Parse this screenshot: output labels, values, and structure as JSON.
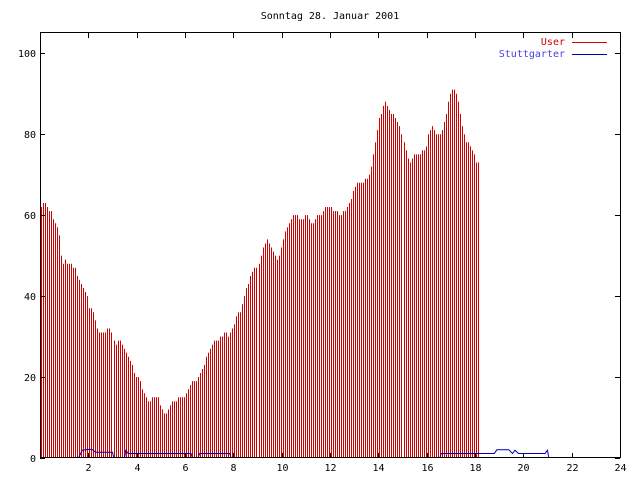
{
  "chart_data": {
    "type": "bar",
    "title": "Sonntag 28. Januar 2001",
    "xlabel": "",
    "ylabel": "",
    "xlim": [
      0,
      24
    ],
    "ylim": [
      0,
      105
    ],
    "x_ticks": [
      2,
      4,
      6,
      8,
      10,
      12,
      14,
      16,
      18,
      20,
      22,
      24
    ],
    "y_ticks": [
      0,
      20,
      40,
      60,
      80,
      100
    ],
    "grid": false,
    "legend_position": "top-right",
    "samples_per_hour": 12,
    "series": [
      {
        "name": "User",
        "type": "bar",
        "color": "#d00000",
        "values": [
          62,
          63,
          63,
          62,
          61,
          61,
          59,
          58,
          57,
          55,
          50,
          48,
          49,
          48,
          48,
          48,
          47,
          47,
          45,
          44,
          43,
          42,
          41,
          40,
          37,
          37,
          36,
          34,
          32,
          31,
          31,
          31,
          31,
          32,
          32,
          31,
          29,
          28,
          29,
          29,
          28,
          27,
          26,
          25,
          24,
          23,
          21,
          20,
          20,
          19,
          17,
          16,
          15,
          14,
          14,
          15,
          15,
          15,
          15,
          13,
          12,
          11,
          11,
          12,
          13,
          14,
          14,
          14,
          15,
          15,
          15,
          15,
          16,
          17,
          18,
          19,
          19,
          19,
          20,
          21,
          22,
          23,
          25,
          26,
          27,
          28,
          29,
          29,
          29,
          30,
          30,
          31,
          31,
          30,
          31,
          32,
          33,
          35,
          36,
          36,
          38,
          40,
          42,
          43,
          45,
          46,
          47,
          47,
          48,
          50,
          52,
          53,
          54,
          53,
          52,
          51,
          50,
          49,
          50,
          52,
          54,
          56,
          57,
          58,
          59,
          60,
          60,
          60,
          59,
          59,
          59,
          60,
          60,
          59,
          58,
          58,
          59,
          60,
          60,
          60,
          61,
          62,
          62,
          62,
          62,
          61,
          61,
          61,
          60,
          60,
          61,
          61,
          62,
          63,
          64,
          66,
          67,
          68,
          68,
          68,
          68,
          69,
          69,
          70,
          72,
          75,
          78,
          81,
          84,
          85,
          87,
          88,
          87,
          86,
          85,
          85,
          84,
          83,
          82,
          80,
          78,
          76,
          74,
          73,
          74,
          75,
          75,
          75,
          75,
          76,
          76,
          77,
          80,
          81,
          82,
          81,
          80,
          80,
          80,
          81,
          83,
          85,
          88,
          90,
          91,
          91,
          90,
          88,
          85,
          82,
          80,
          78,
          78,
          77,
          76,
          75,
          73,
          73
        ]
      },
      {
        "name": "Stuttgarter",
        "type": "line",
        "color": "#0000b0",
        "values": [
          0,
          0,
          0,
          0,
          0,
          0,
          0,
          0,
          0,
          0,
          0,
          0,
          0,
          0,
          0,
          0,
          0,
          0,
          0,
          0,
          0,
          0,
          0,
          0,
          0,
          0,
          0,
          0,
          0,
          0,
          0,
          0,
          0,
          0,
          0,
          0,
          0,
          0,
          0,
          0,
          0,
          0,
          0,
          0,
          0,
          0,
          0,
          0,
          0,
          0,
          0,
          0,
          0,
          0,
          0,
          0,
          0,
          0,
          0,
          0,
          0,
          0,
          0,
          0,
          0,
          0,
          0,
          0,
          0,
          0,
          0,
          0,
          0,
          0,
          0,
          0,
          0,
          0,
          0,
          0,
          0,
          0,
          0,
          0,
          0,
          0,
          0,
          0,
          0,
          0,
          0,
          0,
          0,
          0,
          0,
          0,
          0,
          0,
          0,
          0,
          0,
          0,
          0,
          0,
          0,
          0,
          0,
          0,
          0,
          0,
          0,
          0,
          0,
          0,
          0,
          0,
          0,
          0,
          0,
          0,
          0,
          0,
          0,
          0,
          0,
          0,
          0,
          0,
          0,
          0,
          0,
          0,
          0,
          0,
          0,
          0,
          0,
          0,
          0,
          0,
          0,
          0,
          0,
          0,
          0,
          0,
          0,
          0,
          0,
          0,
          0,
          0,
          0,
          0,
          0,
          0,
          0,
          0,
          0,
          0,
          0,
          0,
          0,
          0,
          0,
          0,
          0,
          0,
          0,
          0,
          0,
          0,
          0,
          0,
          0,
          0,
          0,
          0,
          0,
          0,
          0,
          0,
          0,
          0,
          0,
          0,
          0,
          0,
          0,
          0,
          0,
          0,
          0,
          0,
          0,
          0,
          0,
          0,
          0,
          0,
          0,
          0,
          0,
          0,
          0,
          0,
          0,
          0,
          0,
          0,
          0,
          0,
          0,
          0,
          0,
          0,
          0,
          0,
          0,
          0,
          0,
          0,
          0,
          0,
          0,
          0,
          0,
          0,
          0,
          0,
          0,
          0,
          0,
          0,
          0,
          0,
          0,
          0,
          0,
          0,
          0,
          0,
          0,
          0,
          0,
          0,
          0,
          0,
          0,
          0,
          0,
          0,
          0,
          0,
          0,
          0,
          0,
          0,
          0,
          0,
          0,
          0,
          0,
          0,
          0,
          0,
          0,
          0,
          0,
          0,
          0,
          0,
          0,
          0,
          0,
          0,
          0,
          0,
          0,
          0,
          0,
          0,
          0
        ],
        "segments": [
          {
            "x": [
              1.6,
              1.75,
              2.0,
              2.15,
              2.3,
              3.0,
              3.05
            ],
            "y": [
              0,
              1.8,
              2.0,
              2.0,
              1.3,
              1.3,
              0
            ]
          },
          {
            "x": [
              3.5,
              3.55,
              3.65,
              6.25,
              6.3
            ],
            "y": [
              0,
              1.8,
              1.0,
              1.0,
              0
            ]
          },
          {
            "x": [
              6.55,
              6.6,
              7.85,
              7.9
            ],
            "y": [
              0,
              1.0,
              1.0,
              0
            ]
          },
          {
            "x": [
              16.55,
              16.6,
              18.8,
              18.9,
              19.4,
              19.55,
              19.65,
              19.8,
              20.9,
              21.0,
              21.05
            ],
            "y": [
              0,
              1.0,
              1.0,
              1.9,
              1.9,
              1.0,
              1.8,
              1.0,
              1.0,
              1.8,
              0
            ]
          }
        ]
      }
    ]
  }
}
